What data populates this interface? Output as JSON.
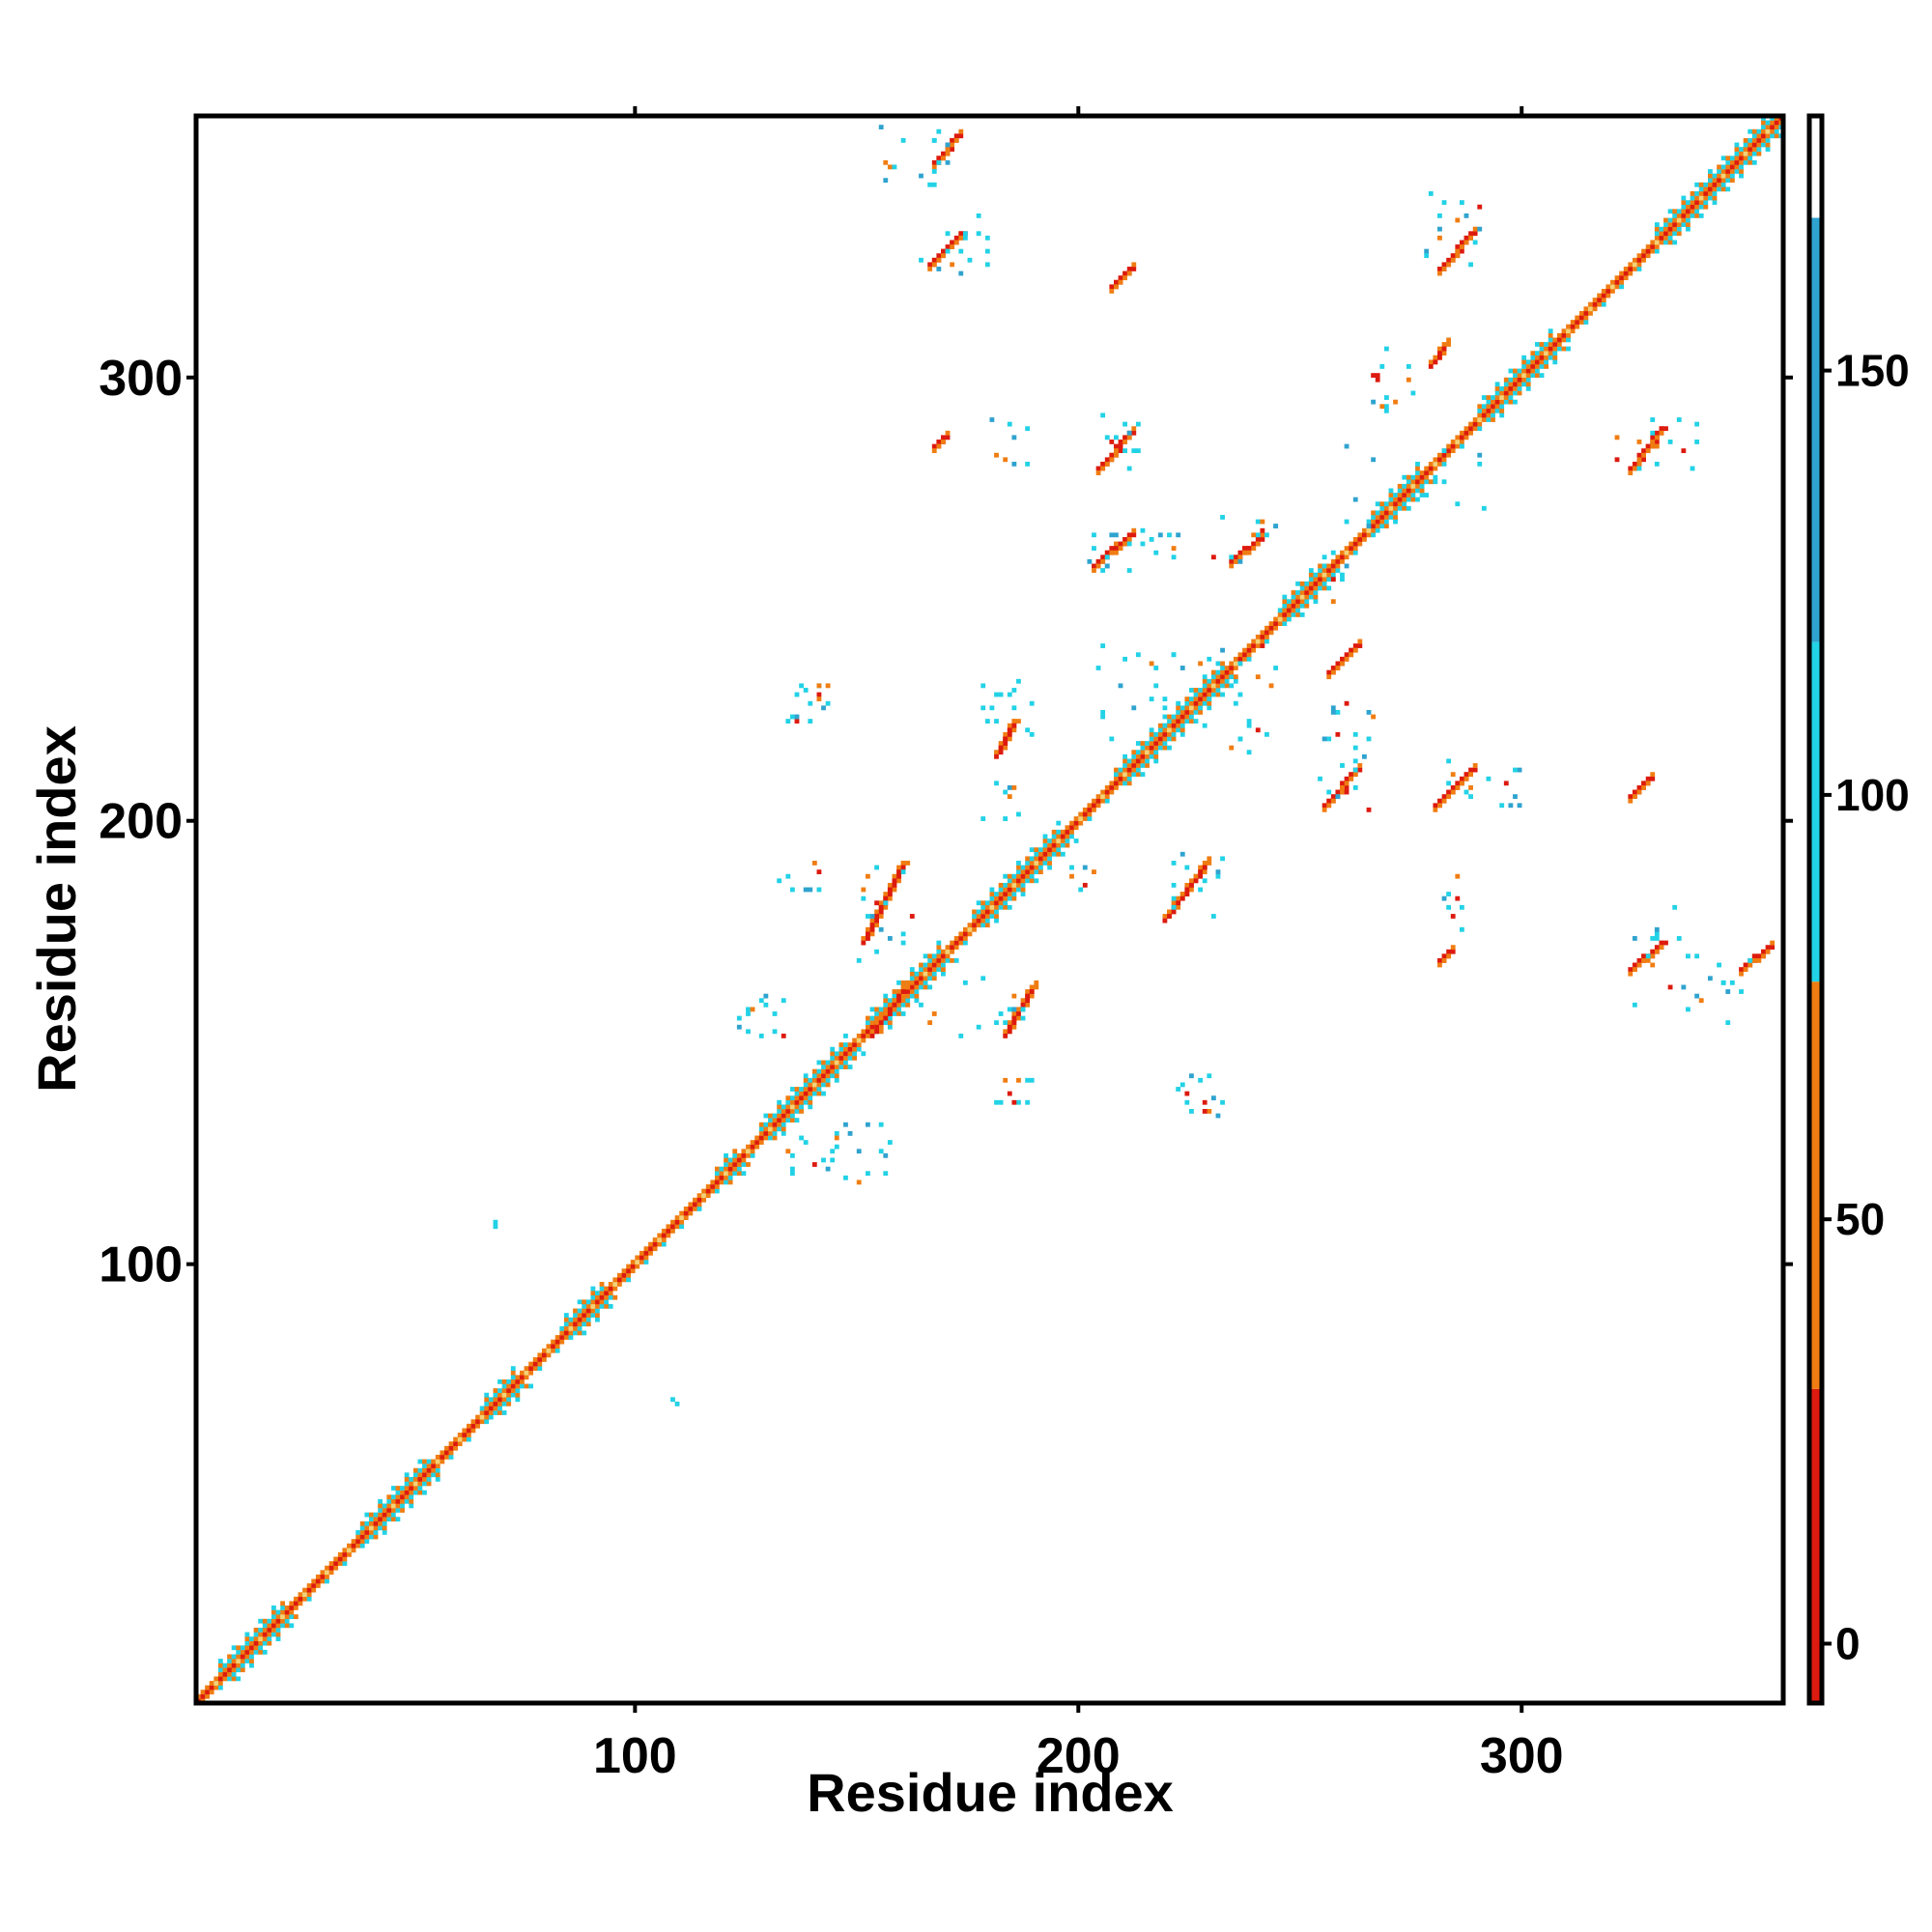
{
  "chart_data": {
    "type": "heatmap",
    "title": "",
    "xlabel": "Residue index",
    "ylabel": "Residue index",
    "xlim": [
      1,
      358
    ],
    "ylim": [
      1,
      358
    ],
    "xticks": [
      100,
      200,
      300
    ],
    "yticks": [
      100,
      200,
      300
    ],
    "grid": false,
    "colorbar": {
      "placement": "right",
      "ticks": [
        0,
        50,
        100,
        150
      ],
      "range": [
        -7,
        180
      ],
      "segments": [
        {
          "from": -7,
          "to": 30,
          "color": "#dd1a0f"
        },
        {
          "from": 30,
          "to": 78,
          "color": "#f07d12"
        },
        {
          "from": 78,
          "to": 118,
          "color": "#22d2e6"
        },
        {
          "from": 118,
          "to": 168,
          "color": "#2fa3cf"
        },
        {
          "from": 168,
          "to": 180,
          "color": "#ffffff"
        }
      ]
    },
    "palette": {
      "red": "#dd1a0f",
      "orange": "#f07d12",
      "cyan": "#22d2e6",
      "blue": "#2fa3cf",
      "yellow": "#f2d27a"
    },
    "diagonal": {
      "from": 1,
      "to": 358
    },
    "thick_diagonal_segments": [
      [
        6,
        20
      ],
      [
        37,
        53
      ],
      [
        65,
        72
      ],
      [
        83,
        92
      ],
      [
        118,
        122
      ],
      [
        128,
        147
      ],
      [
        152,
        168
      ],
      [
        176,
        195
      ],
      [
        208,
        232
      ],
      [
        245,
        255
      ],
      [
        265,
        276
      ],
      [
        290,
        306
      ],
      [
        330,
        358
      ]
    ],
    "strands": [
      {
        "x1": 167,
        "y1": 348,
        "x2": 172,
        "y2": 354,
        "color": "red"
      },
      {
        "x1": 166,
        "y1": 325,
        "x2": 173,
        "y2": 332,
        "color": "red"
      },
      {
        "x1": 207,
        "y1": 320,
        "x2": 211,
        "y2": 324,
        "color": "red"
      },
      {
        "x1": 281,
        "y1": 324,
        "x2": 288,
        "y2": 332,
        "color": "red"
      },
      {
        "x1": 204,
        "y1": 279,
        "x2": 211,
        "y2": 287,
        "color": "red"
      },
      {
        "x1": 324,
        "y1": 279,
        "x2": 331,
        "y2": 288,
        "color": "red"
      },
      {
        "x1": 203,
        "y1": 257,
        "x2": 211,
        "y2": 264,
        "color": "red"
      },
      {
        "x1": 234,
        "y1": 258,
        "x2": 240,
        "y2": 263,
        "color": "red"
      },
      {
        "x1": 256,
        "y1": 233,
        "x2": 262,
        "y2": 239,
        "color": "red"
      },
      {
        "x1": 255,
        "y1": 203,
        "x2": 262,
        "y2": 211,
        "color": "red"
      },
      {
        "x1": 280,
        "y1": 203,
        "x2": 288,
        "y2": 211,
        "color": "red"
      },
      {
        "x1": 324,
        "y1": 205,
        "x2": 328,
        "y2": 209,
        "color": "red"
      },
      {
        "x1": 324,
        "y1": 166,
        "x2": 331,
        "y2": 172,
        "color": "red"
      },
      {
        "x1": 349,
        "y1": 166,
        "x2": 355,
        "y2": 171,
        "color": "red"
      },
      {
        "x1": 281,
        "y1": 168,
        "x2": 283,
        "y2": 170,
        "color": "red"
      },
      {
        "x1": 167,
        "y1": 284,
        "x2": 169,
        "y2": 286,
        "color": "red"
      },
      {
        "x1": 153,
        "y1": 152,
        "x2": 160,
        "y2": 162,
        "color": "orange"
      },
      {
        "x1": 151,
        "y1": 173,
        "x2": 160,
        "y2": 190,
        "color": "orange"
      },
      {
        "x1": 183,
        "y1": 152,
        "x2": 189,
        "y2": 162,
        "color": "orange"
      },
      {
        "x1": 219,
        "y1": 178,
        "x2": 228,
        "y2": 190,
        "color": "orange"
      },
      {
        "x1": 181,
        "y1": 215,
        "x2": 185,
        "y2": 222,
        "color": "orange"
      },
      {
        "x1": 279,
        "y1": 303,
        "x2": 282,
        "y2": 307,
        "color": "orange"
      }
    ],
    "scatter_regions": [
      {
        "x": [
          152,
          170
        ],
        "y": [
          340,
          358
        ],
        "n": 16
      },
      {
        "x": [
          164,
          180
        ],
        "y": [
          322,
          336
        ],
        "n": 16
      },
      {
        "x": [
          278,
          292
        ],
        "y": [
          322,
          342
        ],
        "n": 14
      },
      {
        "x": [
          264,
          278
        ],
        "y": [
          292,
          306
        ],
        "n": 14
      },
      {
        "x": [
          202,
          214
        ],
        "y": [
          278,
          296
        ],
        "n": 12
      },
      {
        "x": [
          176,
          188
        ],
        "y": [
          280,
          290
        ],
        "n": 8
      },
      {
        "x": [
          201,
          222
        ],
        "y": [
          255,
          266
        ],
        "n": 20
      },
      {
        "x": [
          230,
          244
        ],
        "y": [
          258,
          270
        ],
        "n": 12
      },
      {
        "x": [
          256,
          266
        ],
        "y": [
          248,
          290
        ],
        "n": 10
      },
      {
        "x": [
          276,
          296
        ],
        "y": [
          270,
          285
        ],
        "n": 10
      },
      {
        "x": [
          320,
          340
        ],
        "y": [
          278,
          292
        ],
        "n": 14
      },
      {
        "x": [
          204,
          244
        ],
        "y": [
          215,
          240
        ],
        "n": 40
      },
      {
        "x": [
          254,
          266
        ],
        "y": [
          202,
          226
        ],
        "n": 22
      },
      {
        "x": [
          281,
          300
        ],
        "y": [
          202,
          214
        ],
        "n": 14
      },
      {
        "x": [
          134,
          144
        ],
        "y": [
          222,
          232
        ],
        "n": 16
      },
      {
        "x": [
          177,
          190
        ],
        "y": [
          218,
          232
        ],
        "n": 14
      },
      {
        "x": [
          176,
          190
        ],
        "y": [
          200,
          210
        ],
        "n": 8
      },
      {
        "x": [
          150,
          164
        ],
        "y": [
          168,
          192
        ],
        "n": 16
      },
      {
        "x": [
          132,
          142
        ],
        "y": [
          182,
          190
        ],
        "n": 8
      },
      {
        "x": [
          198,
          204
        ],
        "y": [
          180,
          192
        ],
        "n": 6
      },
      {
        "x": [
          220,
          232
        ],
        "y": [
          178,
          192
        ],
        "n": 12
      },
      {
        "x": [
          281,
          287
        ],
        "y": [
          174,
          188
        ],
        "n": 8
      },
      {
        "x": [
          324,
          336
        ],
        "y": [
          157,
          182
        ],
        "n": 12
      },
      {
        "x": [
          336,
          352
        ],
        "y": [
          154,
          170
        ],
        "n": 14
      },
      {
        "x": [
          164,
          189
        ],
        "y": [
          150,
          165
        ],
        "n": 16
      },
      {
        "x": [
          122,
          134
        ],
        "y": [
          148,
          160
        ],
        "n": 14
      },
      {
        "x": [
          180,
          190
        ],
        "y": [
          132,
          142
        ],
        "n": 10
      },
      {
        "x": [
          134,
          146
        ],
        "y": [
          120,
          128
        ],
        "n": 12
      },
      {
        "x": [
          222,
          232
        ],
        "y": [
          133,
          145
        ],
        "n": 14
      },
      {
        "x": [
          144,
          158
        ],
        "y": [
          118,
          132
        ],
        "n": 14
      },
      {
        "x": [
          68,
          70
        ],
        "y": [
          107,
          109
        ],
        "n": 2
      },
      {
        "x": [
          107,
          109
        ],
        "y": [
          68,
          70
        ],
        "n": 2
      }
    ]
  }
}
